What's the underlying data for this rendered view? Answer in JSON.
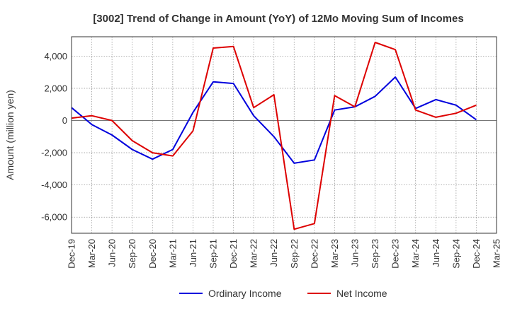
{
  "chart_data": {
    "type": "line",
    "title": "[3002]  Trend of Change in Amount (YoY) of 12Mo Moving Sum of Incomes",
    "ylabel": "Amount (million yen)",
    "xlabel": "",
    "ylim": [
      -7000,
      5200
    ],
    "yticks": [
      -6000,
      -4000,
      -2000,
      0,
      2000,
      4000
    ],
    "ytick_labels": [
      "-6,000",
      "-4,000",
      "-2,000",
      "0",
      "2,000",
      "4,000"
    ],
    "x": [
      "Dec-19",
      "Mar-20",
      "Jun-20",
      "Sep-20",
      "Dec-20",
      "Mar-21",
      "Jun-21",
      "Sep-21",
      "Dec-21",
      "Mar-22",
      "Jun-22",
      "Sep-22",
      "Dec-22",
      "Mar-23",
      "Jun-23",
      "Sep-23",
      "Dec-23",
      "Mar-24",
      "Jun-24",
      "Sep-24",
      "Dec-24",
      "Mar-25"
    ],
    "grid": true,
    "legend_position": "bottom",
    "series": [
      {
        "name": "Ordinary Income",
        "color": "#0000dd",
        "values": [
          800,
          -250,
          -900,
          -1800,
          -2400,
          -1800,
          500,
          2400,
          2300,
          300,
          -1000,
          -2650,
          -2450,
          650,
          850,
          1500,
          2700,
          750,
          1300,
          950,
          50,
          null
        ]
      },
      {
        "name": "Net Income",
        "color": "#dd0000",
        "values": [
          150,
          300,
          0,
          -1250,
          -2000,
          -2200,
          -650,
          4500,
          4600,
          800,
          1600,
          -6750,
          -6400,
          1550,
          850,
          4850,
          4400,
          650,
          200,
          450,
          950,
          null
        ]
      }
    ]
  }
}
